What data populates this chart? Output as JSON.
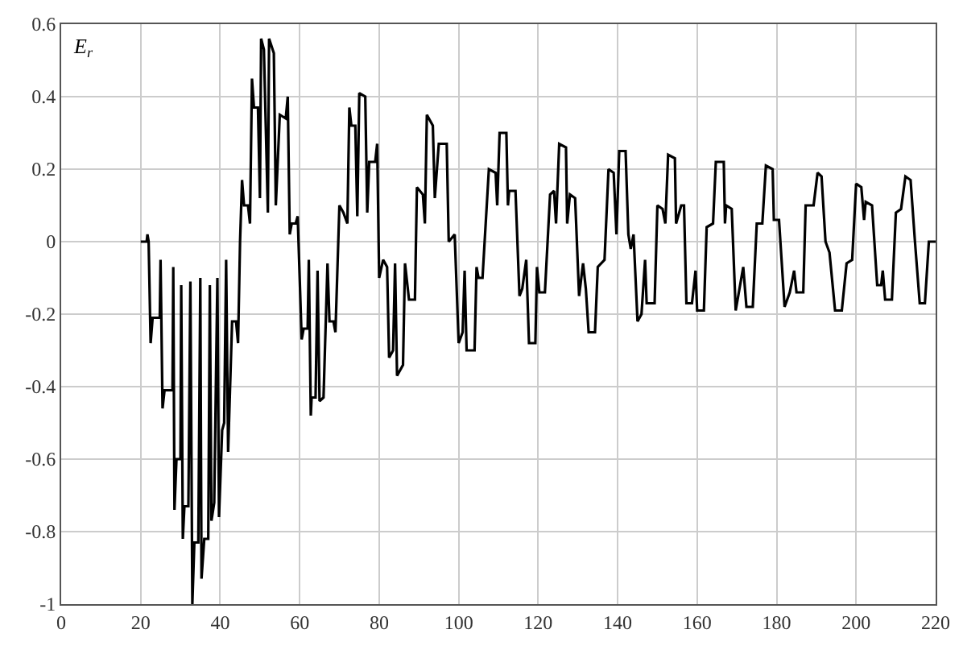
{
  "chart_data": {
    "type": "line",
    "annotations": [
      "E$_{r}$"
    ],
    "xlim": [
      0,
      220
    ],
    "xticks": [
      0,
      20,
      40,
      60,
      80,
      100,
      120,
      140,
      160,
      180,
      200,
      220
    ],
    "ylim": [
      -1,
      0.6
    ],
    "yticks": [
      -1,
      -0.8,
      -0.6,
      -0.4,
      -0.2,
      0,
      0.2,
      0.4,
      0.6
    ],
    "grid": true,
    "marker": "none",
    "line_style": "solid",
    "series": [
      {
        "color": "#000000",
        "x": [
          20,
          21.5,
          21.7,
          22,
          22.5,
          23,
          24.8,
          25,
          25.5,
          26,
          28,
          28.2,
          28.5,
          29,
          30,
          30.2,
          30.6,
          31,
          32,
          32.5,
          33,
          33.5,
          34.5,
          35,
          35.3,
          36,
          37,
          37.4,
          37.8,
          38.5,
          39.3,
          39.7,
          40.5,
          41,
          41.5,
          42,
          43,
          44,
          44.5,
          45,
          45.5,
          46,
          47,
          47.5,
          48,
          48.5,
          49.5,
          50,
          50.3,
          51,
          52,
          52.3,
          53.5,
          54,
          55,
          56.5,
          57,
          57.5,
          58,
          59,
          59.5,
          60.5,
          61,
          62,
          62.3,
          62.8,
          63,
          64,
          64.5,
          65,
          66,
          67,
          67.5,
          68.5,
          69,
          70,
          71,
          72,
          72.5,
          73,
          74,
          74.5,
          75,
          76.5,
          77,
          77.5,
          79,
          79.5,
          80,
          81,
          82,
          82.5,
          83.5,
          84,
          84.5,
          86,
          86.5,
          87.5,
          89,
          89.5,
          91,
          91.5,
          92,
          93.5,
          94,
          95,
          97,
          97.5,
          99,
          100,
          101,
          101.5,
          102,
          104,
          104.5,
          105,
          106,
          107.6,
          109.3,
          109.7,
          110.3,
          112,
          112.4,
          112.7,
          114.3,
          115.3,
          116,
          117,
          117.7,
          119.3,
          119.7,
          120.3,
          121.7,
          123,
          124,
          124.5,
          125.3,
          127,
          127.3,
          128,
          129.3,
          130.3,
          131.3,
          132,
          132.7,
          134.3,
          135,
          136.7,
          137.7,
          139,
          139.7,
          140.4,
          142,
          142.7,
          143.3,
          144,
          145,
          146,
          146.9,
          147.3,
          149.3,
          150,
          151.3,
          152,
          152.7,
          154.4,
          154.7,
          156,
          156.7,
          157.3,
          158.7,
          159.6,
          160,
          161.7,
          162.4,
          164,
          164.7,
          166.7,
          167,
          167.3,
          168.7,
          169.7,
          171.6,
          172.4,
          174,
          175,
          176.4,
          177.3,
          179,
          179.3,
          180.6,
          182,
          183.3,
          184.4,
          185,
          186.7,
          187.3,
          189.3,
          190.3,
          191.3,
          192.3,
          193.3,
          194.7,
          196.4,
          197.6,
          199,
          200,
          201.3,
          202,
          202.4,
          204,
          205.3,
          206.3,
          206.7,
          207.3,
          209,
          210,
          211.3,
          212.4,
          213.7,
          214.8,
          216,
          217.3,
          218.3,
          220
        ],
        "values": [
          0,
          0,
          0.02,
          0,
          -0.28,
          -0.21,
          -0.21,
          -0.05,
          -0.46,
          -0.41,
          -0.41,
          -0.07,
          -0.74,
          -0.6,
          -0.6,
          -0.12,
          -0.82,
          -0.73,
          -0.73,
          -0.11,
          -1.0,
          -0.83,
          -0.83,
          -0.1,
          -0.93,
          -0.82,
          -0.82,
          -0.12,
          -0.77,
          -0.72,
          -0.1,
          -0.76,
          -0.52,
          -0.5,
          -0.05,
          -0.58,
          -0.22,
          -0.22,
          -0.28,
          0,
          0.17,
          0.1,
          0.1,
          0.05,
          0.45,
          0.37,
          0.37,
          0.12,
          0.56,
          0.53,
          0.08,
          0.56,
          0.52,
          0.1,
          0.35,
          0.34,
          0.4,
          0.02,
          0.05,
          0.05,
          0.07,
          -0.27,
          -0.24,
          -0.24,
          -0.05,
          -0.48,
          -0.43,
          -0.43,
          -0.08,
          -0.44,
          -0.43,
          -0.06,
          -0.22,
          -0.22,
          -0.25,
          0.1,
          0.08,
          0.05,
          0.37,
          0.32,
          0.32,
          0.07,
          0.41,
          0.4,
          0.08,
          0.22,
          0.22,
          0.27,
          -0.1,
          -0.05,
          -0.07,
          -0.32,
          -0.3,
          -0.06,
          -0.37,
          -0.34,
          -0.06,
          -0.16,
          -0.16,
          0.15,
          0.13,
          0.05,
          0.35,
          0.32,
          0.12,
          0.27,
          0.27,
          0,
          0.02,
          -0.28,
          -0.25,
          -0.08,
          -0.3,
          -0.3,
          -0.07,
          -0.1,
          -0.1,
          0.2,
          0.19,
          0.1,
          0.3,
          0.3,
          0.1,
          0.14,
          0.14,
          -0.15,
          -0.13,
          -0.05,
          -0.28,
          -0.28,
          -0.07,
          -0.14,
          -0.14,
          0.13,
          0.14,
          0.05,
          0.27,
          0.26,
          0.05,
          0.13,
          0.12,
          -0.15,
          -0.06,
          -0.13,
          -0.25,
          -0.25,
          -0.07,
          -0.05,
          0.2,
          0.19,
          0.02,
          0.25,
          0.25,
          0.02,
          -0.02,
          0.02,
          -0.22,
          -0.2,
          -0.05,
          -0.17,
          -0.17,
          0.1,
          0.09,
          0.05,
          0.24,
          0.23,
          0.05,
          0.1,
          0.1,
          -0.17,
          -0.17,
          -0.08,
          -0.19,
          -0.19,
          0.04,
          0.05,
          0.22,
          0.22,
          0.05,
          0.1,
          0.09,
          -0.19,
          -0.07,
          -0.18,
          -0.18,
          0.05,
          0.05,
          0.21,
          0.2,
          0.06,
          0.06,
          -0.18,
          -0.14,
          -0.08,
          -0.14,
          -0.14,
          0.1,
          0.1,
          0.19,
          0.18,
          0,
          -0.03,
          -0.19,
          -0.19,
          -0.06,
          -0.05,
          0.16,
          0.15,
          0.06,
          0.11,
          0.1,
          -0.12,
          -0.12,
          -0.08,
          -0.16,
          -0.16,
          0.08,
          0.09,
          0.18,
          0.17,
          0,
          -0.17,
          -0.17,
          0,
          0
        ]
      }
    ]
  }
}
